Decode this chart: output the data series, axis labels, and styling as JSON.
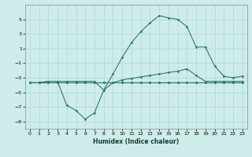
{
  "xlabel": "Humidex (Indice chaleur)",
  "bg_color": "#ceecea",
  "line_color": "#2d7a6e",
  "grid_color": "#aed8d4",
  "xlim": [
    -0.5,
    23.5
  ],
  "ylim": [
    -10,
    7
  ],
  "xticks": [
    0,
    1,
    2,
    3,
    4,
    5,
    6,
    7,
    8,
    9,
    10,
    11,
    12,
    13,
    14,
    15,
    16,
    17,
    18,
    19,
    20,
    21,
    22,
    23
  ],
  "yticks": [
    -9,
    -7,
    -5,
    -3,
    -1,
    1,
    3,
    5
  ],
  "line1_x": [
    0,
    1,
    2,
    3,
    4,
    5,
    6,
    7,
    8,
    9,
    10,
    11,
    12,
    13,
    14,
    15,
    16,
    17,
    18,
    19,
    20,
    21,
    22,
    23
  ],
  "line1_y": [
    -3.7,
    -3.7,
    -3.7,
    -3.7,
    -3.7,
    -3.7,
    -3.7,
    -3.7,
    -3.7,
    -3.7,
    -3.7,
    -3.7,
    -3.7,
    -3.7,
    -3.7,
    -3.7,
    -3.7,
    -3.7,
    -3.7,
    -3.7,
    -3.7,
    -3.7,
    -3.7,
    -3.7
  ],
  "line2_x": [
    0,
    1,
    2,
    3,
    4,
    5,
    6,
    7,
    8,
    9,
    10,
    11,
    12,
    13,
    14,
    15,
    16,
    17,
    18,
    19,
    20,
    21,
    22,
    23
  ],
  "line2_y": [
    -3.7,
    -3.7,
    -3.7,
    -3.7,
    -3.7,
    -3.7,
    -3.7,
    -3.7,
    -3.7,
    -3.7,
    -3.3,
    -3.1,
    -2.9,
    -2.7,
    -2.5,
    -2.3,
    -2.1,
    -1.8,
    -2.7,
    -3.5,
    -3.5,
    -3.5,
    -3.5,
    -3.5
  ],
  "line3_x": [
    0,
    1,
    2,
    3,
    4,
    5,
    6,
    7,
    8,
    9,
    10,
    11,
    12,
    13,
    14,
    15,
    16,
    17,
    18,
    19,
    20,
    21,
    22,
    23
  ],
  "line3_y": [
    -3.7,
    -3.7,
    -3.5,
    -3.5,
    -3.5,
    -3.5,
    -3.5,
    -3.5,
    -4.7,
    -2.5,
    -0.2,
    1.8,
    3.3,
    4.5,
    5.5,
    5.2,
    5.0,
    4.0,
    1.2,
    1.2,
    -1.4,
    -2.8,
    -3.0,
    -2.8
  ],
  "line4_x": [
    0,
    1,
    2,
    3,
    4,
    5,
    6,
    7,
    8,
    9,
    10,
    11,
    12,
    13,
    14,
    15,
    16,
    17,
    18,
    19,
    20,
    21,
    22,
    23
  ],
  "line4_y": [
    -3.7,
    -3.7,
    -3.5,
    -3.5,
    -6.8,
    -7.5,
    -8.7,
    -7.8,
    -4.7,
    -3.7,
    -3.7,
    -3.7,
    -3.7,
    -3.7,
    -3.7,
    -3.7,
    -3.7,
    -3.7,
    -3.7,
    -3.7,
    -3.7,
    -3.7,
    -3.7,
    -3.7
  ]
}
